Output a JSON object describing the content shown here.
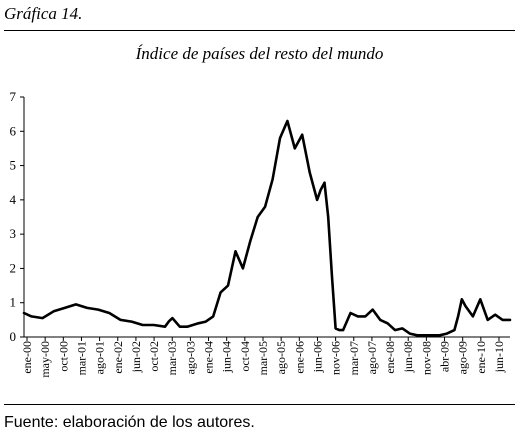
{
  "figure_label": "Gráfica 14.",
  "source_note": "Fuente: elaboración de los autores.",
  "chart_data": {
    "type": "line",
    "title": "Índice de países del resto del mundo",
    "xlabel": "",
    "ylabel": "",
    "ylim": [
      0,
      7
    ],
    "yticks": [
      0,
      1,
      2,
      3,
      4,
      5,
      6,
      7
    ],
    "grid": false,
    "x_start": "2000-01",
    "x_end": "2010-12",
    "x_tick_labels": [
      "ene-00",
      "may-00",
      "oct-00",
      "mar-01",
      "ago-01",
      "ene-02",
      "jun-02",
      "oct-02",
      "mar-03",
      "ago-03",
      "ene-04",
      "jun-04",
      "oct-04",
      "mar-05",
      "ago-05",
      "ene-06",
      "jun-06",
      "nov-06",
      "mar-07",
      "ago-07",
      "ene-08",
      "jun-08",
      "nov-08",
      "abr-09",
      "ago-09",
      "ene-10",
      "jun-10"
    ],
    "series": [
      {
        "color": "#000000",
        "x": [
          "2000-01",
          "2000-03",
          "2000-06",
          "2000-09",
          "2000-12",
          "2001-03",
          "2001-06",
          "2001-09",
          "2001-12",
          "2002-03",
          "2002-06",
          "2002-09",
          "2002-12",
          "2003-03",
          "2003-04",
          "2003-05",
          "2003-07",
          "2003-09",
          "2003-12",
          "2004-02",
          "2004-04",
          "2004-06",
          "2004-08",
          "2004-10",
          "2004-12",
          "2005-02",
          "2005-04",
          "2005-06",
          "2005-08",
          "2005-10",
          "2005-12",
          "2006-02",
          "2006-04",
          "2006-06",
          "2006-08",
          "2006-09",
          "2006-10",
          "2006-11",
          "2006-12",
          "2007-01",
          "2007-02",
          "2007-03",
          "2007-05",
          "2007-07",
          "2007-09",
          "2007-11",
          "2008-01",
          "2008-03",
          "2008-05",
          "2008-07",
          "2008-09",
          "2008-11",
          "2009-01",
          "2009-03",
          "2009-05",
          "2009-07",
          "2009-09",
          "2009-10",
          "2009-11",
          "2009-12",
          "2010-02",
          "2010-04",
          "2010-06",
          "2010-08",
          "2010-10",
          "2010-12"
        ],
        "values": [
          0.7,
          0.6,
          0.55,
          0.75,
          0.85,
          0.95,
          0.85,
          0.8,
          0.7,
          0.5,
          0.45,
          0.35,
          0.35,
          0.3,
          0.45,
          0.55,
          0.3,
          0.3,
          0.4,
          0.45,
          0.6,
          1.3,
          1.5,
          2.5,
          2.0,
          2.8,
          3.5,
          3.8,
          4.6,
          5.8,
          6.3,
          5.5,
          5.9,
          4.8,
          4.0,
          4.3,
          4.5,
          3.5,
          1.8,
          0.25,
          0.2,
          0.2,
          0.7,
          0.6,
          0.6,
          0.8,
          0.5,
          0.4,
          0.2,
          0.25,
          0.1,
          0.05,
          0.05,
          0.05,
          0.05,
          0.1,
          0.2,
          0.6,
          1.1,
          0.9,
          0.6,
          1.1,
          0.5,
          0.65,
          0.5,
          0.5
        ]
      }
    ]
  }
}
